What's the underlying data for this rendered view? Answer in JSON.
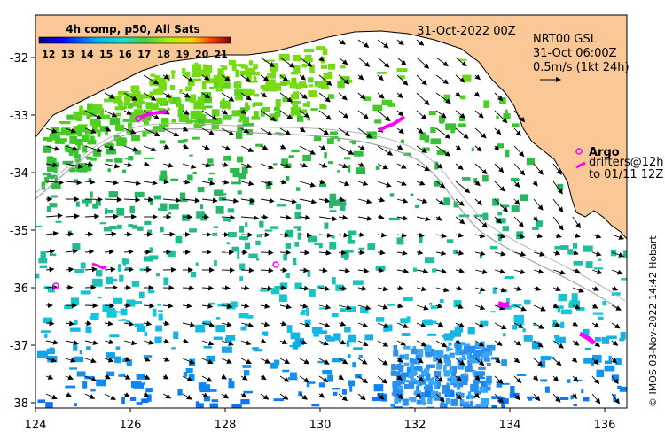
{
  "colorbar": {
    "title": "4h comp, p50, All Sats",
    "ticks": [
      "12",
      "13",
      "14",
      "15",
      "16",
      "17",
      "18",
      "19",
      "20",
      "21"
    ],
    "range": [
      11.5,
      21.5
    ]
  },
  "header": {
    "date": "31-Oct-2022 00Z"
  },
  "current_info": {
    "line1": "NRT00 GSL",
    "line2": "31-Oct 06:00Z",
    "line3": "0.5m/s (1kt 24h)"
  },
  "argo_legend": {
    "title": "Argo",
    "line1": "drifters@12h",
    "line2": "to 01/11 12Z"
  },
  "credit": "© IMOS 03-Nov-2022 14:42 Hobart",
  "axes": {
    "x_ticks": [
      "124",
      "126",
      "128",
      "130",
      "132",
      "134",
      "136"
    ],
    "y_ticks": [
      "-32",
      "-33",
      "-34",
      "-35",
      "-36",
      "-37",
      "-38"
    ]
  },
  "colors": {
    "land": "#f9c896",
    "drifter": "#ff00ff",
    "isobath": "#a0a0a0"
  }
}
